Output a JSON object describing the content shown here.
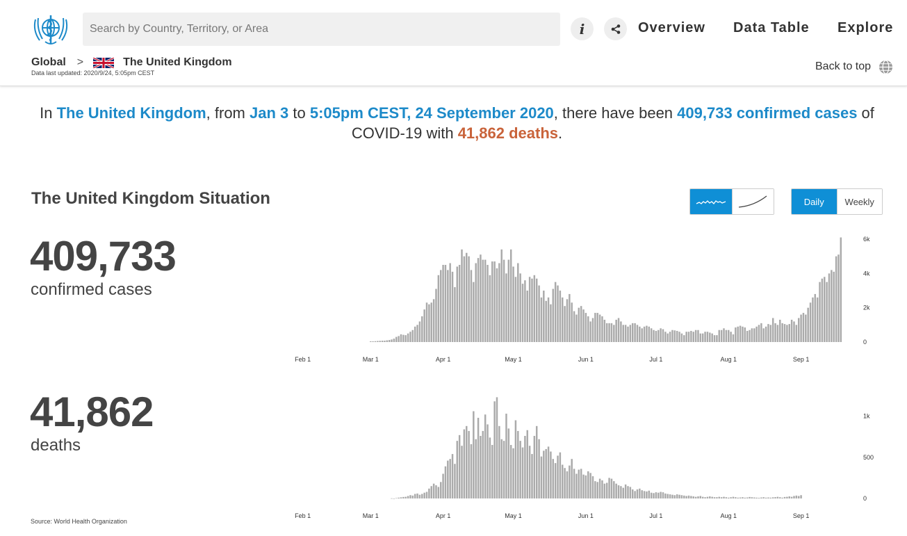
{
  "header": {
    "search_placeholder": "Search by Country, Territory, or Area",
    "info_label": "i",
    "nav": [
      "Overview",
      "Data Table",
      "Explore"
    ]
  },
  "breadcrumb": {
    "root": "Global",
    "separator": ">",
    "country": "The United Kingdom",
    "updated": "Data last updated: 2020/9/24, 5:05pm CEST"
  },
  "back_to_top": "Back to top",
  "summary": {
    "p1": "In ",
    "country": "The United Kingdom",
    "p2": ", from ",
    "start": "Jan 3",
    "p3": " to ",
    "end": "5:05pm CEST, 24 September 2020",
    "p4": ", there have been ",
    "cases": "409,733 confirmed cases",
    "p5": " of COVID-19 with ",
    "deaths": "41,862 deaths",
    "p6": "."
  },
  "situation": {
    "title": "The United Kingdom Situation",
    "period_options": [
      "Daily",
      "Weekly"
    ],
    "active_period": "Daily",
    "chart_type_options": [
      "daily-bars-icon",
      "cumulative-line-icon"
    ],
    "active_chart_type": "daily-bars-icon",
    "cases_total": "409,733",
    "cases_label": "confirmed cases",
    "deaths_total": "41,862",
    "deaths_label": "deaths"
  },
  "source": "Source:  World Health Organization",
  "colors": {
    "accent": "#0f8fd6",
    "highlight_blue": "#1d8ac9",
    "highlight_orange": "#c9633a",
    "bar": "#aaaaaa"
  },
  "chart_data": [
    {
      "type": "bar",
      "title": "",
      "xlabel": "",
      "ylabel": "",
      "x_ticks": [
        "Feb 1",
        "Mar 1",
        "Apr 1",
        "May 1",
        "Jun 1",
        "Jul 1",
        "Aug 1",
        "Sep 1"
      ],
      "x_range": [
        "2020-01-03",
        "2020-09-24"
      ],
      "y_ticks": [
        "0",
        "2k",
        "4k",
        "6k"
      ],
      "ylim": [
        0,
        6000
      ],
      "series": [
        {
          "start_date": "2020-03-01",
          "values": [
            40,
            40,
            50,
            60,
            70,
            80,
            80,
            100,
            120,
            150,
            200,
            300,
            350,
            450,
            420,
            400,
            500,
            600,
            700,
            900,
            1000,
            1200,
            1500,
            1900,
            2300,
            2200,
            2300,
            2500,
            3100,
            3900,
            4200,
            4500,
            4500,
            4200,
            4600,
            4100,
            3200,
            4400,
            4500,
            5400,
            5000,
            5200,
            5000,
            4200,
            3500,
            4600,
            4900,
            5100,
            4800,
            4800,
            4500,
            3900,
            4700,
            4700,
            4300,
            4600,
            5400,
            4800,
            4000,
            4800,
            5400,
            4400,
            3800,
            4600,
            4000,
            3400,
            3600,
            3000,
            3800,
            3700,
            3900,
            3700,
            3300,
            2600,
            3000,
            2400,
            2600,
            2200,
            3100,
            3500,
            3300,
            3000,
            2600,
            2100,
            2500,
            2800,
            2300,
            1800,
            1600,
            2000,
            2100,
            1900,
            1700,
            1500,
            1200,
            1400,
            1700,
            1700,
            1600,
            1500,
            1300,
            1100,
            1100,
            1100,
            1000,
            1300,
            1400,
            1200,
            1000,
            1000,
            900,
            1000,
            1100,
            1100,
            1000,
            900,
            800,
            900,
            950,
            900,
            800,
            700,
            650,
            700,
            800,
            750,
            600,
            500,
            600,
            700,
            680,
            650,
            600,
            500,
            400,
            600,
            600,
            650,
            600,
            700,
            700,
            500,
            500,
            600,
            600,
            550,
            500,
            400,
            400,
            700,
            700,
            800,
            700,
            700,
            600,
            450,
            850,
            900,
            950,
            900,
            850,
            650,
            700,
            800,
            800,
            900,
            1000,
            1100,
            800,
            900,
            1050,
            1000,
            1400,
            1100,
            1000,
            1300,
            1100,
            1050,
            1000,
            1050,
            1300,
            1200,
            1000,
            1400,
            1600,
            1700,
            1600,
            2000,
            2300,
            2600,
            2800,
            2600,
            3500,
            3700,
            3800,
            3500,
            4000,
            4200,
            4100,
            5000,
            5100,
            6100
          ]
        }
      ]
    },
    {
      "type": "bar",
      "title": "",
      "xlabel": "",
      "ylabel": "",
      "x_ticks": [
        "Feb 1",
        "Mar 1",
        "Apr 1",
        "May 1",
        "Jun 1",
        "Jul 1",
        "Aug 1",
        "Sep 1"
      ],
      "x_range": [
        "2020-01-03",
        "2020-09-24"
      ],
      "y_ticks": [
        "0",
        "500",
        "1k"
      ],
      "ylim": [
        0,
        1250
      ],
      "series": [
        {
          "start_date": "2020-03-10",
          "values": [
            2,
            0,
            5,
            10,
            14,
            18,
            20,
            30,
            40,
            35,
            55,
            60,
            45,
            55,
            70,
            80,
            120,
            150,
            180,
            160,
            140,
            200,
            300,
            390,
            460,
            480,
            540,
            420,
            700,
            770,
            640,
            840,
            880,
            820,
            660,
            1060,
            720,
            980,
            760,
            820,
            1020,
            900,
            740,
            650,
            1180,
            1230,
            880,
            720,
            700,
            1030,
            850,
            650,
            610,
            950,
            820,
            700,
            620,
            760,
            830,
            640,
            540,
            760,
            880,
            720,
            510,
            580,
            600,
            630,
            570,
            480,
            430,
            520,
            560,
            410,
            370,
            330,
            400,
            480,
            360,
            300,
            350,
            360,
            290,
            280,
            330,
            310,
            270,
            210,
            200,
            240,
            220,
            180,
            190,
            250,
            240,
            210,
            180,
            160,
            150,
            130,
            170,
            150,
            140,
            110,
            90,
            110,
            120,
            100,
            90,
            85,
            95,
            70,
            65,
            75,
            70,
            80,
            75,
            60,
            55,
            50,
            45,
            40,
            50,
            45,
            40,
            35,
            30,
            35,
            30,
            25,
            20,
            25,
            30,
            20,
            15,
            20,
            25,
            20,
            15,
            15,
            20,
            15,
            20,
            15,
            10,
            15,
            20,
            15,
            10,
            12,
            15,
            10,
            12,
            18,
            15,
            12,
            10,
            8,
            12,
            15,
            10,
            12,
            10,
            14,
            16,
            20,
            15,
            10,
            18,
            20,
            25,
            20,
            30,
            35,
            30,
            40
          ]
        }
      ]
    }
  ]
}
